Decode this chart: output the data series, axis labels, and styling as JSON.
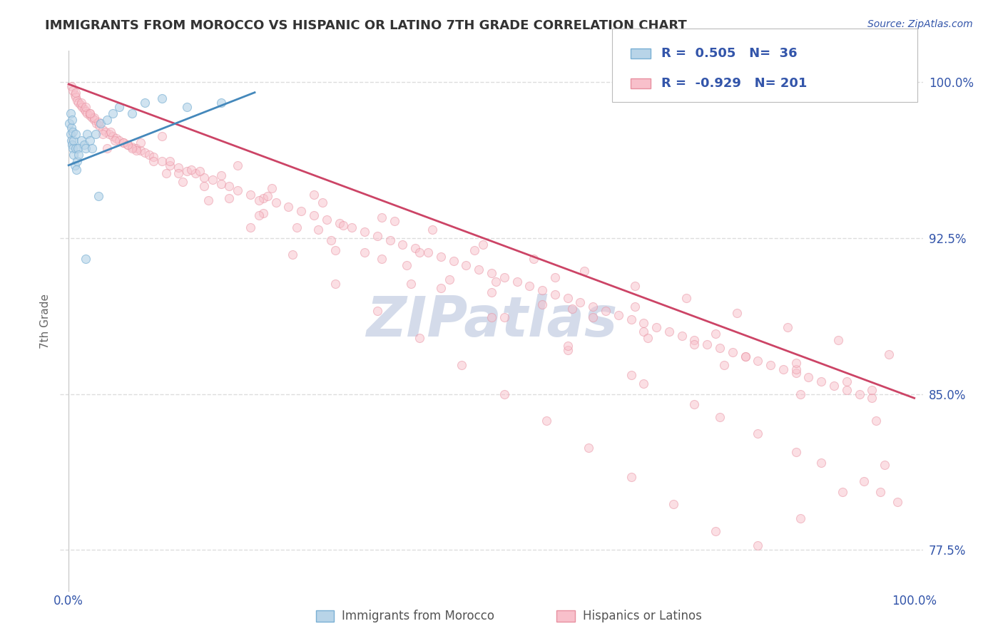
{
  "title": "IMMIGRANTS FROM MOROCCO VS HISPANIC OR LATINO 7TH GRADE CORRELATION CHART",
  "source_text": "Source: ZipAtlas.com",
  "ylabel": "7th Grade",
  "watermark": "ZIPatlas",
  "x_tick_labels": [
    "0.0%",
    "100.0%"
  ],
  "y_tick_labels": [
    "77.5%",
    "85.0%",
    "92.5%",
    "100.0%"
  ],
  "legend_entries": [
    {
      "label": "Immigrants from Morocco",
      "color": "#a8c4e0",
      "R": "0.505",
      "N": "36"
    },
    {
      "label": "Hispanics or Latinos",
      "color": "#f4a0b0",
      "R": "-0.929",
      "N": "201"
    }
  ],
  "blue_scatter_x": [
    0.001,
    0.002,
    0.002,
    0.003,
    0.003,
    0.004,
    0.004,
    0.005,
    0.005,
    0.006,
    0.006,
    0.007,
    0.008,
    0.008,
    0.009,
    0.01,
    0.011,
    0.012,
    0.015,
    0.018,
    0.02,
    0.022,
    0.025,
    0.028,
    0.032,
    0.038,
    0.045,
    0.052,
    0.06,
    0.075,
    0.09,
    0.11,
    0.14,
    0.18,
    0.02,
    0.035
  ],
  "blue_scatter_y": [
    0.98,
    0.975,
    0.985,
    0.978,
    0.972,
    0.97,
    0.982,
    0.968,
    0.976,
    0.965,
    0.972,
    0.96,
    0.968,
    0.975,
    0.958,
    0.962,
    0.968,
    0.965,
    0.972,
    0.97,
    0.968,
    0.975,
    0.972,
    0.968,
    0.975,
    0.98,
    0.982,
    0.985,
    0.988,
    0.985,
    0.99,
    0.992,
    0.988,
    0.99,
    0.915,
    0.945
  ],
  "pink_scatter_x": [
    0.003,
    0.005,
    0.007,
    0.008,
    0.01,
    0.012,
    0.014,
    0.016,
    0.018,
    0.02,
    0.022,
    0.025,
    0.028,
    0.03,
    0.033,
    0.036,
    0.04,
    0.044,
    0.048,
    0.052,
    0.056,
    0.06,
    0.065,
    0.07,
    0.075,
    0.08,
    0.085,
    0.09,
    0.095,
    0.1,
    0.11,
    0.12,
    0.13,
    0.14,
    0.15,
    0.16,
    0.17,
    0.18,
    0.19,
    0.2,
    0.215,
    0.23,
    0.245,
    0.26,
    0.275,
    0.29,
    0.305,
    0.32,
    0.335,
    0.35,
    0.365,
    0.38,
    0.395,
    0.41,
    0.425,
    0.44,
    0.455,
    0.47,
    0.485,
    0.5,
    0.515,
    0.53,
    0.545,
    0.56,
    0.575,
    0.59,
    0.605,
    0.62,
    0.635,
    0.65,
    0.665,
    0.68,
    0.695,
    0.71,
    0.725,
    0.74,
    0.755,
    0.77,
    0.785,
    0.8,
    0.815,
    0.83,
    0.845,
    0.86,
    0.875,
    0.89,
    0.905,
    0.92,
    0.935,
    0.95,
    0.008,
    0.015,
    0.025,
    0.035,
    0.05,
    0.065,
    0.08,
    0.1,
    0.13,
    0.16,
    0.19,
    0.23,
    0.27,
    0.31,
    0.35,
    0.4,
    0.45,
    0.5,
    0.56,
    0.62,
    0.68,
    0.74,
    0.8,
    0.86,
    0.92,
    0.04,
    0.075,
    0.12,
    0.18,
    0.24,
    0.3,
    0.37,
    0.43,
    0.49,
    0.55,
    0.61,
    0.67,
    0.73,
    0.79,
    0.85,
    0.91,
    0.97,
    0.055,
    0.145,
    0.235,
    0.325,
    0.415,
    0.505,
    0.595,
    0.685,
    0.775,
    0.865,
    0.955,
    0.02,
    0.11,
    0.2,
    0.29,
    0.385,
    0.48,
    0.575,
    0.67,
    0.765,
    0.86,
    0.95,
    0.03,
    0.07,
    0.115,
    0.165,
    0.215,
    0.265,
    0.315,
    0.365,
    0.415,
    0.465,
    0.515,
    0.565,
    0.615,
    0.665,
    0.715,
    0.765,
    0.815,
    0.865,
    0.915,
    0.965,
    0.045,
    0.135,
    0.225,
    0.315,
    0.405,
    0.5,
    0.59,
    0.68,
    0.77,
    0.86,
    0.94,
    0.025,
    0.085,
    0.155,
    0.225,
    0.295,
    0.37,
    0.44,
    0.515,
    0.59,
    0.665,
    0.74,
    0.815,
    0.89,
    0.96,
    0.98
  ],
  "pink_scatter_y": [
    0.998,
    0.996,
    0.994,
    0.993,
    0.991,
    0.99,
    0.989,
    0.988,
    0.987,
    0.986,
    0.985,
    0.984,
    0.983,
    0.982,
    0.98,
    0.979,
    0.977,
    0.976,
    0.975,
    0.974,
    0.973,
    0.972,
    0.971,
    0.97,
    0.969,
    0.968,
    0.967,
    0.966,
    0.965,
    0.964,
    0.962,
    0.96,
    0.959,
    0.957,
    0.956,
    0.954,
    0.953,
    0.951,
    0.95,
    0.948,
    0.946,
    0.944,
    0.942,
    0.94,
    0.938,
    0.936,
    0.934,
    0.932,
    0.93,
    0.928,
    0.926,
    0.924,
    0.922,
    0.92,
    0.918,
    0.916,
    0.914,
    0.912,
    0.91,
    0.908,
    0.906,
    0.904,
    0.902,
    0.9,
    0.898,
    0.896,
    0.894,
    0.892,
    0.89,
    0.888,
    0.886,
    0.884,
    0.882,
    0.88,
    0.878,
    0.876,
    0.874,
    0.872,
    0.87,
    0.868,
    0.866,
    0.864,
    0.862,
    0.86,
    0.858,
    0.856,
    0.854,
    0.852,
    0.85,
    0.848,
    0.995,
    0.99,
    0.985,
    0.981,
    0.976,
    0.971,
    0.967,
    0.962,
    0.956,
    0.95,
    0.944,
    0.937,
    0.93,
    0.924,
    0.918,
    0.912,
    0.905,
    0.899,
    0.893,
    0.887,
    0.88,
    0.874,
    0.868,
    0.862,
    0.856,
    0.975,
    0.968,
    0.962,
    0.955,
    0.949,
    0.942,
    0.935,
    0.929,
    0.922,
    0.915,
    0.909,
    0.902,
    0.896,
    0.889,
    0.882,
    0.876,
    0.869,
    0.972,
    0.958,
    0.945,
    0.931,
    0.918,
    0.904,
    0.891,
    0.877,
    0.864,
    0.85,
    0.837,
    0.988,
    0.974,
    0.96,
    0.946,
    0.933,
    0.919,
    0.906,
    0.892,
    0.879,
    0.865,
    0.852,
    0.983,
    0.97,
    0.956,
    0.943,
    0.93,
    0.917,
    0.903,
    0.89,
    0.877,
    0.864,
    0.85,
    0.837,
    0.824,
    0.81,
    0.797,
    0.784,
    0.777,
    0.79,
    0.803,
    0.816,
    0.968,
    0.952,
    0.936,
    0.919,
    0.903,
    0.887,
    0.871,
    0.855,
    0.839,
    0.822,
    0.808,
    0.985,
    0.971,
    0.957,
    0.943,
    0.929,
    0.915,
    0.901,
    0.887,
    0.873,
    0.859,
    0.845,
    0.831,
    0.817,
    0.803,
    0.798
  ],
  "blue_line_x": [
    0.0,
    0.22
  ],
  "blue_line_y": [
    0.96,
    0.995
  ],
  "pink_line_x": [
    0.0,
    1.0
  ],
  "pink_line_y": [
    0.999,
    0.848
  ],
  "scatter_alpha": 0.5,
  "scatter_size": 75,
  "blue_color": "#7ab0d4",
  "pink_color": "#e890a0",
  "blue_fill": "#b8d4e8",
  "pink_fill": "#f8c0cb",
  "blue_line_color": "#4488bb",
  "pink_line_color": "#cc4466",
  "text_color": "#3355aa",
  "title_color": "#333333",
  "watermark_color": "#d0d8e8",
  "grid_color": "#dddddd",
  "xlim": [
    -0.01,
    1.01
  ],
  "ylim": [
    0.755,
    1.015
  ],
  "y_ticks": [
    0.775,
    0.85,
    0.925,
    1.0
  ],
  "x_ticks": [
    0.0,
    1.0
  ]
}
